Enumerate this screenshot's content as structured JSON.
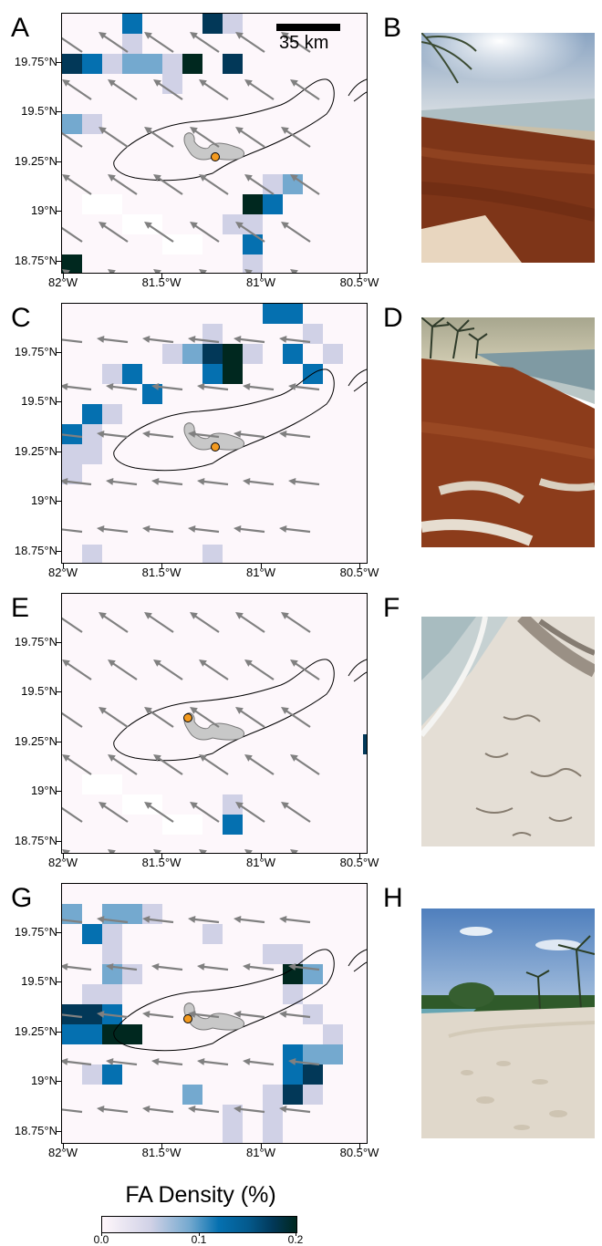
{
  "panels": [
    {
      "letter": "A",
      "photo_letter": "B",
      "scalebar_label": "35 km",
      "wind_dir": "NW"
    },
    {
      "letter": "C",
      "photo_letter": "D",
      "wind_dir": "W"
    },
    {
      "letter": "E",
      "photo_letter": "F",
      "wind_dir": "NW"
    },
    {
      "letter": "G",
      "photo_letter": "H",
      "wind_dir": "W"
    }
  ],
  "axes": {
    "y_ticks": [
      "19.75°N",
      "19.5°N",
      "19.25°N",
      "19°N",
      "18.75°N"
    ],
    "x_ticks": [
      "82°W",
      "81.5°W",
      "81°W",
      "80.5°W"
    ]
  },
  "colorbar": {
    "title": "FA Density (%)",
    "ticks": [
      "0.0",
      "0.1",
      "0.2"
    ],
    "colors": [
      "#fff7fb",
      "#d0d1e6",
      "#74a9cf",
      "#0570b0",
      "#023858",
      "#00281f"
    ]
  },
  "photos": [
    {
      "name": "beach-photo-sargassum-heavy",
      "sky": "#9fb3c8",
      "sea": "#b7c6c9",
      "sand": "#8a3b1f"
    },
    {
      "name": "beach-photo-sargassum-dense",
      "sky": "#c9c3a8",
      "sea": "#7f9aa6",
      "sand": "#93421f"
    },
    {
      "name": "beach-photo-sparse-seaweed",
      "sky": "#d9dde0",
      "sea": "#d8dedf",
      "sand": "#e3ddd3"
    },
    {
      "name": "beach-photo-clean-beach",
      "sky": "#5f8fc9",
      "sea": "#6fa9b5",
      "sand": "#e2dbcf"
    }
  ]
}
